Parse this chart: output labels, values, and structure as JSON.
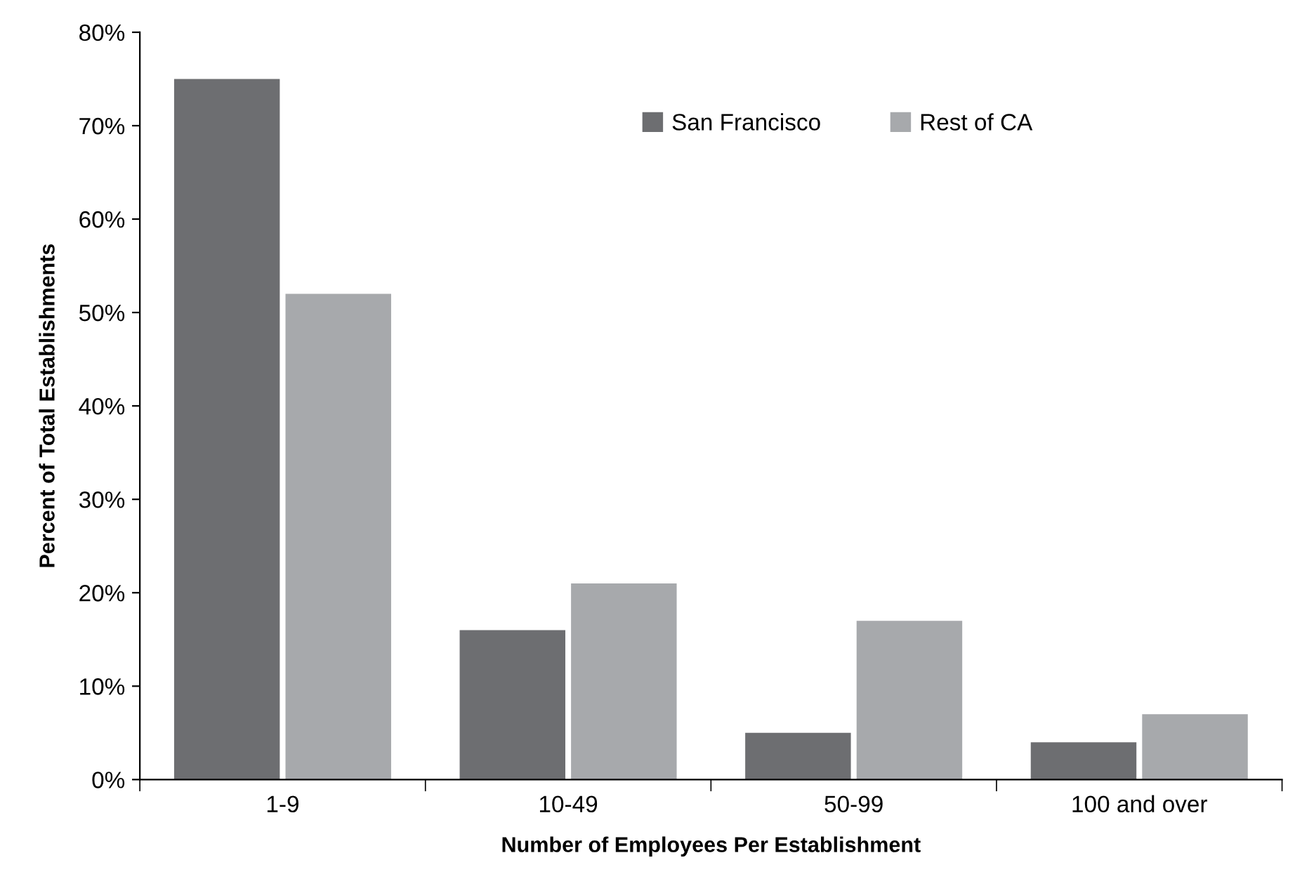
{
  "chart_data": {
    "type": "bar",
    "xlabel": "Number of Employees Per Establishment",
    "ylabel": "Percent of Total Establishments",
    "categories": [
      "1-9",
      "10-49",
      "50-99",
      "100 and over"
    ],
    "series": [
      {
        "name": "San Francisco",
        "color": "#6d6e71",
        "values": [
          75,
          16,
          5,
          4
        ]
      },
      {
        "name": "Rest of CA",
        "color": "#a7a9ac",
        "values": [
          52,
          21,
          17,
          7
        ]
      }
    ],
    "ylim": [
      0,
      80
    ],
    "yticks": [
      {
        "value": 0,
        "label": "0%"
      },
      {
        "value": 10,
        "label": "10%"
      },
      {
        "value": 20,
        "label": "20%"
      },
      {
        "value": 30,
        "label": "30%"
      },
      {
        "value": 40,
        "label": "40%"
      },
      {
        "value": 50,
        "label": "50%"
      },
      {
        "value": 60,
        "label": "60%"
      },
      {
        "value": 70,
        "label": "70%"
      },
      {
        "value": 80,
        "label": "80%"
      }
    ],
    "grid": false,
    "legend": "top right"
  }
}
